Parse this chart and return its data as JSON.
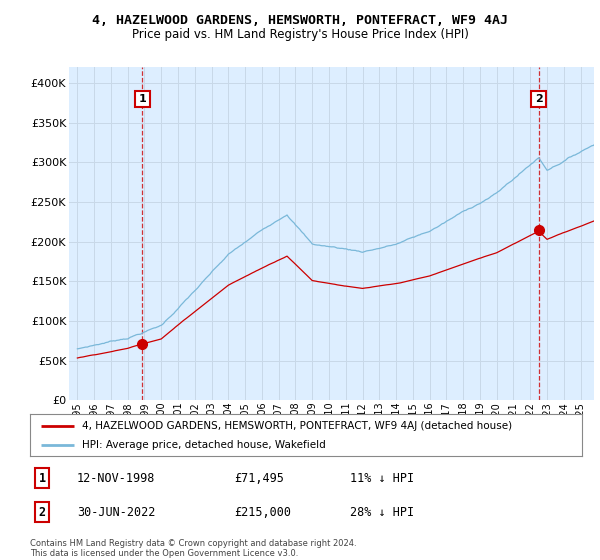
{
  "title": "4, HAZELWOOD GARDENS, HEMSWORTH, PONTEFRACT, WF9 4AJ",
  "subtitle": "Price paid vs. HM Land Registry's House Price Index (HPI)",
  "ylim": [
    0,
    420000
  ],
  "yticks": [
    0,
    50000,
    100000,
    150000,
    200000,
    250000,
    300000,
    350000,
    400000
  ],
  "ytick_labels": [
    "£0",
    "£50K",
    "£100K",
    "£150K",
    "£200K",
    "£250K",
    "£300K",
    "£350K",
    "£400K"
  ],
  "sale1_date": 1998.87,
  "sale1_price": 71495,
  "sale1_label": "1",
  "sale2_date": 2022.5,
  "sale2_price": 215000,
  "sale2_label": "2",
  "hpi_color": "#7ab8d9",
  "sale_color": "#cc0000",
  "annotation_box_color": "#cc0000",
  "grid_color": "#c8d8e8",
  "chart_bg": "#ddeeff",
  "background_color": "#ffffff",
  "legend_label_sale": "4, HAZELWOOD GARDENS, HEMSWORTH, PONTEFRACT, WF9 4AJ (detached house)",
  "legend_label_hpi": "HPI: Average price, detached house, Wakefield",
  "footer_line1": "Contains HM Land Registry data © Crown copyright and database right 2024.",
  "footer_line2": "This data is licensed under the Open Government Licence v3.0.",
  "table_row1_num": "1",
  "table_row1_date": "12-NOV-1998",
  "table_row1_price": "£71,495",
  "table_row1_hpi": "11% ↓ HPI",
  "table_row2_num": "2",
  "table_row2_date": "30-JUN-2022",
  "table_row2_price": "£215,000",
  "table_row2_hpi": "28% ↓ HPI"
}
